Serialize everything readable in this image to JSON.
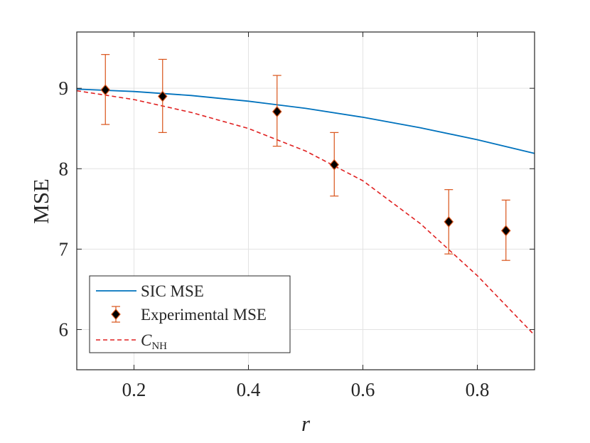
{
  "chart_data": {
    "type": "line",
    "title": "",
    "xlabel": "r",
    "ylabel": "MSE",
    "xlim": [
      0.1,
      0.9
    ],
    "ylim": [
      5.5,
      9.7
    ],
    "xticks": [
      0.2,
      0.4,
      0.6,
      0.8
    ],
    "xtick_labels": [
      "0.2",
      "0.4",
      "0.6",
      "0.8"
    ],
    "yticks": [
      6,
      7,
      8,
      9
    ],
    "ytick_labels": [
      "6",
      "7",
      "8",
      "9"
    ],
    "grid": true,
    "legend_position": "bottom-left",
    "series": [
      {
        "name": "SIC MSE",
        "style": "solid",
        "color": "#0072BD",
        "x": [
          0.1,
          0.2,
          0.3,
          0.4,
          0.5,
          0.6,
          0.7,
          0.8,
          0.9
        ],
        "y": [
          8.99,
          8.96,
          8.91,
          8.84,
          8.75,
          8.64,
          8.51,
          8.36,
          8.19
        ]
      },
      {
        "name": "Experimental MSE",
        "style": "markers-errorbars",
        "color": "#D95319",
        "marker_color": "#000000",
        "x": [
          0.15,
          0.25,
          0.45,
          0.55,
          0.75,
          0.85
        ],
        "y": [
          8.98,
          8.9,
          8.71,
          8.05,
          7.34,
          7.23
        ],
        "err_low": [
          8.55,
          8.45,
          8.28,
          7.66,
          6.94,
          6.86
        ],
        "err_high": [
          9.42,
          9.36,
          9.16,
          8.45,
          7.74,
          7.61
        ]
      },
      {
        "name": "C",
        "name_subscript": "NH",
        "style": "dashed",
        "color": "#E02020",
        "x": [
          0.1,
          0.2,
          0.3,
          0.4,
          0.5,
          0.6,
          0.7,
          0.8,
          0.9
        ],
        "y": [
          8.97,
          8.86,
          8.7,
          8.5,
          8.22,
          7.85,
          7.32,
          6.67,
          5.93
        ]
      }
    ]
  }
}
